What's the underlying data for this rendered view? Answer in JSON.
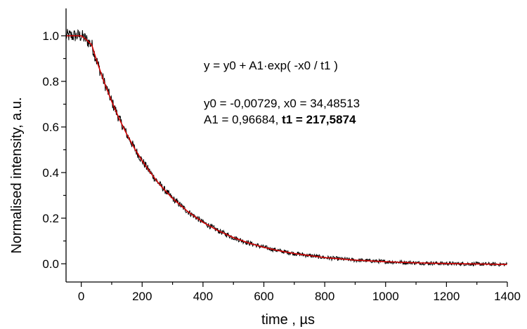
{
  "chart_data": {
    "type": "line",
    "xlabel": "time , µs",
    "ylabel": "Normalised intensity, a.u.",
    "xlim": [
      -50,
      1400
    ],
    "ylim": [
      -0.08,
      1.12
    ],
    "x_ticks": [
      0,
      200,
      400,
      600,
      800,
      1000,
      1200,
      1400
    ],
    "y_ticks": [
      0.0,
      0.2,
      0.4,
      0.6,
      0.8,
      1.0
    ],
    "x_tick_labels": [
      "0",
      "200",
      "400",
      "600",
      "800",
      "1000",
      "1200",
      "1400"
    ],
    "y_tick_labels": [
      "0.0",
      "0.2",
      "0.4",
      "0.6",
      "0.8",
      "1.0"
    ],
    "grid": false,
    "series": [
      {
        "kind": "measured",
        "color": "#000000",
        "points": [
          [
            -50,
            1.0
          ],
          [
            -20,
            1.0
          ],
          [
            0,
            1.0
          ],
          [
            15,
            0.985
          ],
          [
            34.5,
            0.96
          ],
          [
            50,
            0.893
          ],
          [
            75,
            0.797
          ],
          [
            100,
            0.712
          ],
          [
            125,
            0.635
          ],
          [
            150,
            0.567
          ],
          [
            175,
            0.506
          ],
          [
            200,
            0.452
          ],
          [
            225,
            0.404
          ],
          [
            250,
            0.36
          ],
          [
            275,
            0.322
          ],
          [
            300,
            0.287
          ],
          [
            350,
            0.229
          ],
          [
            400,
            0.182
          ],
          [
            450,
            0.145
          ],
          [
            500,
            0.115
          ],
          [
            550,
            0.091
          ],
          [
            600,
            0.072
          ],
          [
            650,
            0.057
          ],
          [
            700,
            0.045
          ],
          [
            800,
            0.027
          ],
          [
            900,
            0.016
          ],
          [
            1000,
            0.009
          ],
          [
            1100,
            0.004
          ],
          [
            1200,
            0.001
          ],
          [
            1300,
            -0.001
          ],
          [
            1400,
            -0.003
          ]
        ],
        "noise_amplitude": 0.03
      },
      {
        "kind": "fit",
        "color": "#d00000",
        "points": [
          [
            -50,
            1.0
          ],
          [
            -20,
            1.0
          ],
          [
            0,
            1.0
          ],
          [
            15,
            0.985
          ],
          [
            34.5,
            0.96
          ],
          [
            50,
            0.893
          ],
          [
            75,
            0.797
          ],
          [
            100,
            0.712
          ],
          [
            125,
            0.635
          ],
          [
            150,
            0.567
          ],
          [
            175,
            0.506
          ],
          [
            200,
            0.452
          ],
          [
            225,
            0.404
          ],
          [
            250,
            0.36
          ],
          [
            275,
            0.322
          ],
          [
            300,
            0.287
          ],
          [
            350,
            0.229
          ],
          [
            400,
            0.182
          ],
          [
            450,
            0.145
          ],
          [
            500,
            0.115
          ],
          [
            550,
            0.091
          ],
          [
            600,
            0.072
          ],
          [
            650,
            0.057
          ],
          [
            700,
            0.045
          ],
          [
            800,
            0.027
          ],
          [
            900,
            0.016
          ],
          [
            1000,
            0.009
          ],
          [
            1100,
            0.004
          ],
          [
            1200,
            0.001
          ],
          [
            1300,
            -0.001
          ],
          [
            1400,
            -0.003
          ]
        ]
      }
    ],
    "annotations": {
      "equation": "y = y0 + A1·exp( -x0 / t1 )",
      "params_line1": "y0 = -0,00729, x0 = 34,48513",
      "params_line2_prefix": "A1 = 0,96684, ",
      "params_line2_bold": "t1 = 217,5874"
    }
  }
}
